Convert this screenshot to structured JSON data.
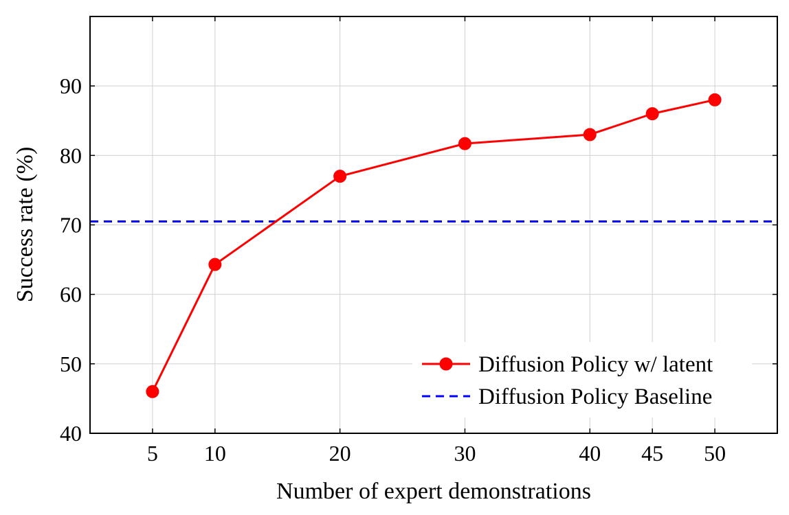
{
  "chart_data": {
    "type": "line",
    "title": "",
    "xlabel": "Number of expert demonstrations",
    "ylabel": "Success rate (%)",
    "xlim": [
      0,
      55
    ],
    "ylim": [
      40,
      100
    ],
    "xticks": [
      5,
      10,
      20,
      30,
      40,
      45,
      50
    ],
    "yticks": [
      40,
      50,
      60,
      70,
      80,
      90
    ],
    "grid": true,
    "legend_position": "bottom-right",
    "series": [
      {
        "name": "Diffusion Policy w/ latent",
        "x": [
          5,
          10,
          20,
          30,
          40,
          45,
          50
        ],
        "y": [
          46,
          64.3,
          77,
          81.7,
          83,
          86,
          88
        ],
        "color": "#ff0000",
        "style": "solid",
        "marker": "circle"
      },
      {
        "name": "Diffusion Policy Baseline",
        "y_constant": 70.5,
        "color": "#0000ff",
        "style": "dashed",
        "marker": "none"
      }
    ]
  }
}
